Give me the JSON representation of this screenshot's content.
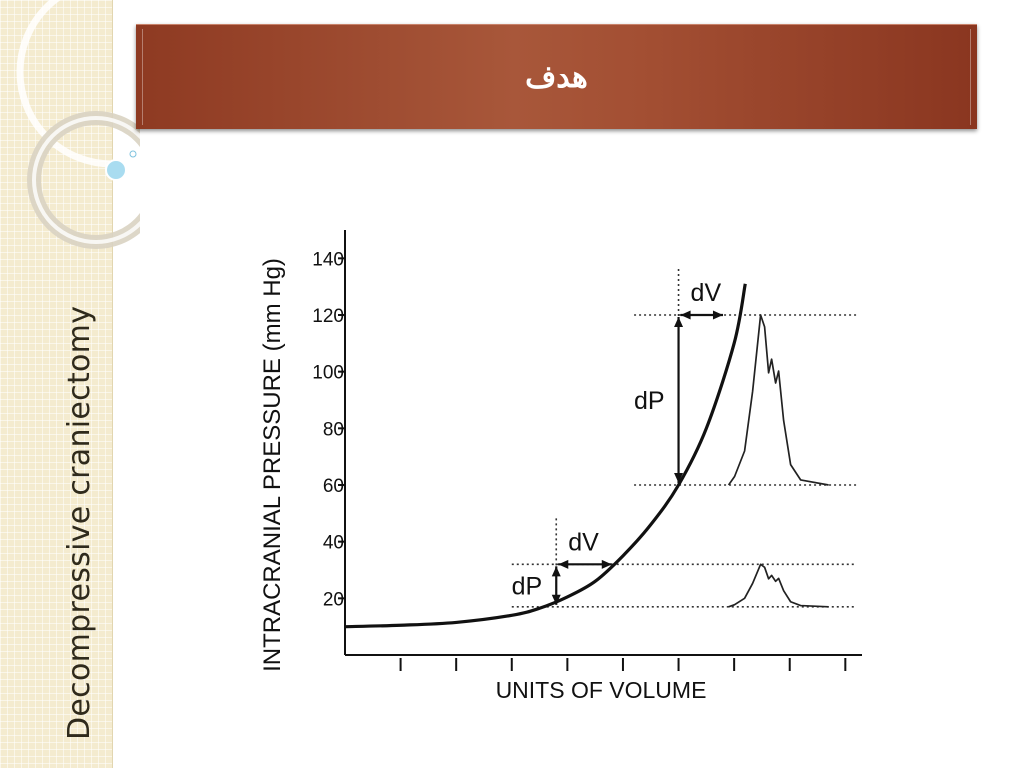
{
  "slide": {
    "title": "هدف",
    "side_title": "Decompressive craniectomy",
    "colors": {
      "banner": "#a0502f",
      "side_panel": "#f4ebcf",
      "bullet": "#9fd3ea"
    }
  },
  "chart_data": {
    "type": "line",
    "title": "",
    "xlabel": "UNITS OF VOLUME",
    "ylabel": "INTRACRANIAL PRESSURE (mm Hg)",
    "ylim": [
      0,
      150
    ],
    "yticks": [
      "20",
      "40",
      "60",
      "80",
      "100",
      "120",
      "140"
    ],
    "xlim": [
      0,
      9.3
    ],
    "x_tick_count": 9,
    "grid": false,
    "series": [
      {
        "x": [
          0,
          1,
          2,
          3,
          3.5,
          4,
          4.5,
          5,
          5.5,
          6,
          6.5,
          7,
          7.2
        ],
        "values": [
          10,
          10.5,
          11.5,
          14,
          16.5,
          20.5,
          26,
          35,
          46,
          60,
          80,
          110,
          131
        ]
      }
    ],
    "annotations": [
      {
        "label": "dV",
        "type": "volume-change",
        "x_from": 3.8,
        "x_to": 4.8,
        "y": 32
      },
      {
        "label": "dP",
        "type": "pressure-change",
        "x": 3.8,
        "y_from": 17,
        "y_to": 32
      },
      {
        "label": "dV",
        "type": "volume-change",
        "x_from": 6,
        "x_to": 6.8,
        "y": 120
      },
      {
        "label": "dP",
        "type": "pressure-change",
        "x": 6,
        "y_from": 60,
        "y_to": 120
      }
    ],
    "reference_lines": [
      {
        "y": 32,
        "x_from": 3,
        "x_to": 9.2
      },
      {
        "y": 17,
        "x_from": 3,
        "x_to": 9.2
      },
      {
        "y": 120,
        "x_from": 5.2,
        "x_to": 9.2
      },
      {
        "y": 60,
        "x_from": 5.2,
        "x_to": 9.2
      }
    ],
    "waveforms": [
      {
        "name": "small-pulse",
        "baseline": 17,
        "peak": 32,
        "x_start": 6.9,
        "x_end": 8.7
      },
      {
        "name": "large-pulse",
        "baseline": 60,
        "peak": 120,
        "x_start": 6.9,
        "x_end": 8.7
      }
    ]
  }
}
